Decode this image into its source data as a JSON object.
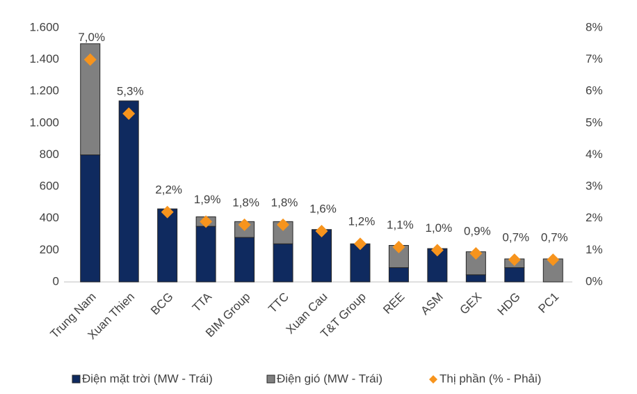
{
  "chart_data": {
    "type": "bar",
    "stacked": true,
    "categories": [
      "Trung Nam",
      "Xuan Thien",
      "BCG",
      "TTA",
      "BIM Group",
      "TTC",
      "Xuan Cau",
      "T&T Group",
      "REE",
      "ASM",
      "GEX",
      "HDG",
      "PC1"
    ],
    "series": [
      {
        "name": "Điện mặt trời (MW - Trái)",
        "color": "#0f2a5f",
        "values": [
          800,
          1140,
          460,
          350,
          280,
          240,
          330,
          240,
          90,
          210,
          45,
          90,
          0
        ]
      },
      {
        "name": "Điện gió (MW - Trái)",
        "color": "#808080",
        "values": [
          700,
          0,
          0,
          60,
          100,
          140,
          0,
          0,
          140,
          0,
          145,
          55,
          145
        ]
      },
      {
        "name": "Thị phần (% - Phải)",
        "color": "#f7941d",
        "axis": "y2",
        "marker": "diamond",
        "values": [
          7.0,
          5.3,
          2.2,
          1.9,
          1.8,
          1.8,
          1.6,
          1.2,
          1.1,
          1.0,
          0.9,
          0.7,
          0.7
        ],
        "value_labels": [
          "7,0%",
          "5,3%",
          "2,2%",
          "1,9%",
          "1,8%",
          "1,8%",
          "1,6%",
          "1,2%",
          "1,1%",
          "1,0%",
          "0,9%",
          "0,7%",
          "0,7%"
        ]
      }
    ],
    "ylim": [
      0,
      1600
    ],
    "yticks": [
      0,
      200,
      400,
      600,
      800,
      {
        "value": 1000,
        "label": "1.000"
      },
      {
        "value": 1200,
        "label": "1.200"
      },
      {
        "value": 1400,
        "label": "1.400"
      },
      {
        "value": 1600,
        "label": "1.600"
      }
    ],
    "y2lim": [
      0,
      8
    ],
    "y2ticks": [
      {
        "value": 0,
        "label": "0%"
      },
      {
        "value": 1,
        "label": "1%"
      },
      {
        "value": 2,
        "label": "2%"
      },
      {
        "value": 3,
        "label": "3%"
      },
      {
        "value": 4,
        "label": "4%"
      },
      {
        "value": 5,
        "label": "5%"
      },
      {
        "value": 6,
        "label": "6%"
      },
      {
        "value": 7,
        "label": "7%"
      },
      {
        "value": 8,
        "label": "8%"
      }
    ],
    "grid": false,
    "legend": "bottom"
  }
}
